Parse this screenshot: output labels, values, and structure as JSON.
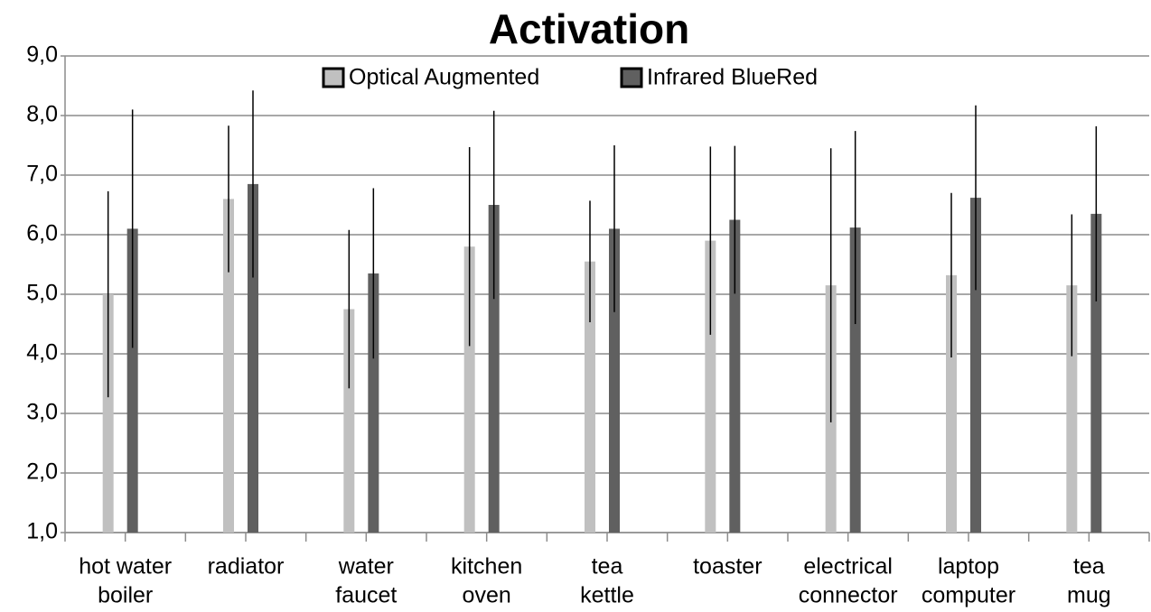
{
  "chart_data": {
    "type": "bar",
    "title": "Activation",
    "categories": [
      [
        "hot water",
        "boiler"
      ],
      [
        "radiator"
      ],
      [
        "water",
        "faucet"
      ],
      [
        "kitchen",
        "oven"
      ],
      [
        "tea",
        "kettle"
      ],
      [
        "toaster"
      ],
      [
        "electrical",
        "connector"
      ],
      [
        "laptop",
        "computer"
      ],
      [
        "tea",
        "mug"
      ]
    ],
    "series": [
      {
        "name": "Optical Augmented",
        "color": "#c0c0c0",
        "values": [
          5.0,
          6.6,
          4.75,
          5.8,
          5.55,
          5.9,
          5.15,
          5.32,
          5.15
        ],
        "errors": [
          1.73,
          1.23,
          1.33,
          1.67,
          1.02,
          1.58,
          2.3,
          1.38,
          1.19
        ]
      },
      {
        "name": "Infrared BlueRed",
        "color": "#606060",
        "values": [
          6.1,
          6.85,
          5.35,
          6.5,
          6.1,
          6.25,
          6.12,
          6.62,
          6.35
        ],
        "errors": [
          2.0,
          1.57,
          1.43,
          1.58,
          1.4,
          1.24,
          1.62,
          1.55,
          1.47
        ]
      }
    ],
    "ylim": [
      1,
      9
    ],
    "yticks": [
      {
        "value": 1,
        "label": "1,0"
      },
      {
        "value": 2,
        "label": "2,0"
      },
      {
        "value": 3,
        "label": "3,0"
      },
      {
        "value": 4,
        "label": "4,0"
      },
      {
        "value": 5,
        "label": "5,0"
      },
      {
        "value": 6,
        "label": "6,0"
      },
      {
        "value": 7,
        "label": "7,0"
      },
      {
        "value": 8,
        "label": "8,0"
      },
      {
        "value": 9,
        "label": "9,0"
      }
    ],
    "grid": true,
    "legend": "top"
  }
}
